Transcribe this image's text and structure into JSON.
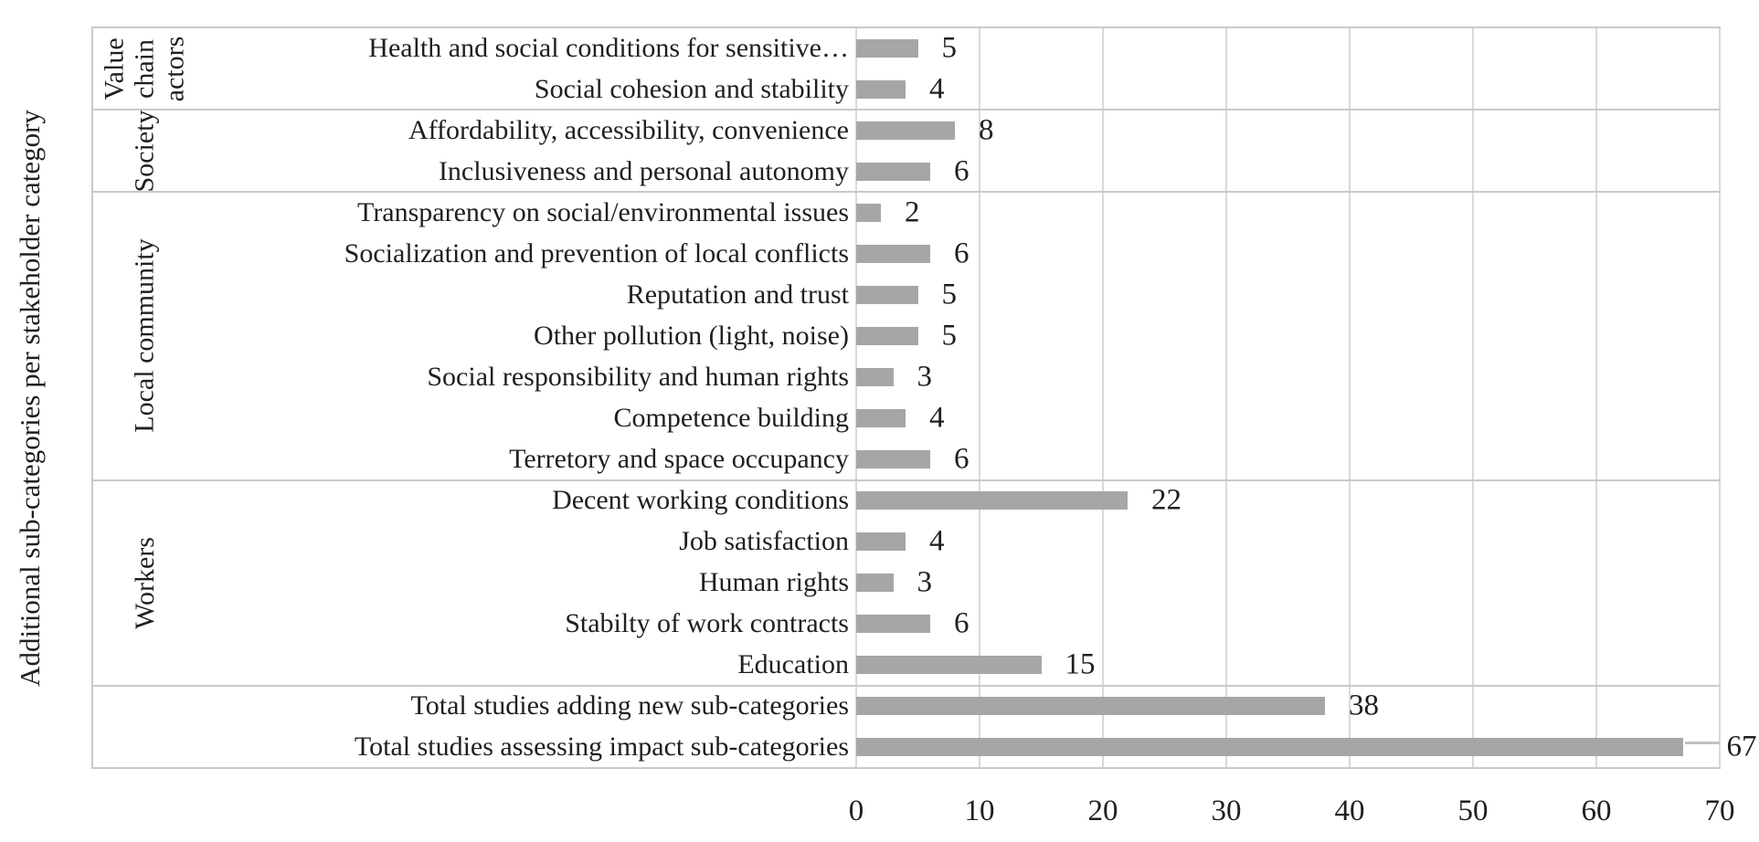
{
  "figure": {
    "background": "#ffffff",
    "text_color": "#1f1f1f"
  },
  "chart_data": {
    "type": "bar",
    "orientation": "horizontal",
    "title": "",
    "xlabel": "",
    "ylabel": "Additional sub-categories per stakeholder category",
    "xlim": [
      0,
      70
    ],
    "xticks": [
      "0",
      "10",
      "20",
      "30",
      "40",
      "50",
      "60",
      "70"
    ],
    "grid": true,
    "legend": "none",
    "bar_color": "#a6a6a6",
    "gridline_color": "#d9d9d9",
    "groups": [
      {
        "label": "Value chain actors",
        "label_lines": [
          "Value",
          "chain",
          "actors"
        ],
        "items": [
          {
            "category": "Health and social conditions for sensitive…",
            "value": 5
          },
          {
            "category": "Social cohesion and stability",
            "value": 4
          }
        ]
      },
      {
        "label": "Society",
        "label_lines": [
          "Society"
        ],
        "items": [
          {
            "category": "Affordability, accessibility, convenience",
            "value": 8
          },
          {
            "category": "Inclusiveness and personal autonomy",
            "value": 6
          }
        ]
      },
      {
        "label": "Local community",
        "label_lines": [
          "Local community"
        ],
        "items": [
          {
            "category": "Transparency on social/environmental issues",
            "value": 2
          },
          {
            "category": "Socialization and prevention of local conflicts",
            "value": 6
          },
          {
            "category": "Reputation and trust",
            "value": 5
          },
          {
            "category": "Other pollution (light, noise)",
            "value": 5
          },
          {
            "category": "Social responsibility and human rights",
            "value": 3
          },
          {
            "category": "Competence building",
            "value": 4
          },
          {
            "category": "Terretory and space occupancy",
            "value": 6
          }
        ]
      },
      {
        "label": "Workers",
        "label_lines": [
          "Workers"
        ],
        "items": [
          {
            "category": "Decent working conditions",
            "value": 22
          },
          {
            "category": "Job satisfaction",
            "value": 4
          },
          {
            "category": "Human rights",
            "value": 3
          },
          {
            "category": "Stabilty of work contracts",
            "value": 6
          },
          {
            "category": "Education",
            "value": 15
          }
        ]
      },
      {
        "label": "",
        "label_lines": [],
        "items": [
          {
            "category": "Total studies adding new sub-categories",
            "value": 38
          },
          {
            "category": "Total studies assessing impact sub-categories",
            "value": 67,
            "end_dash": true
          }
        ]
      }
    ]
  }
}
